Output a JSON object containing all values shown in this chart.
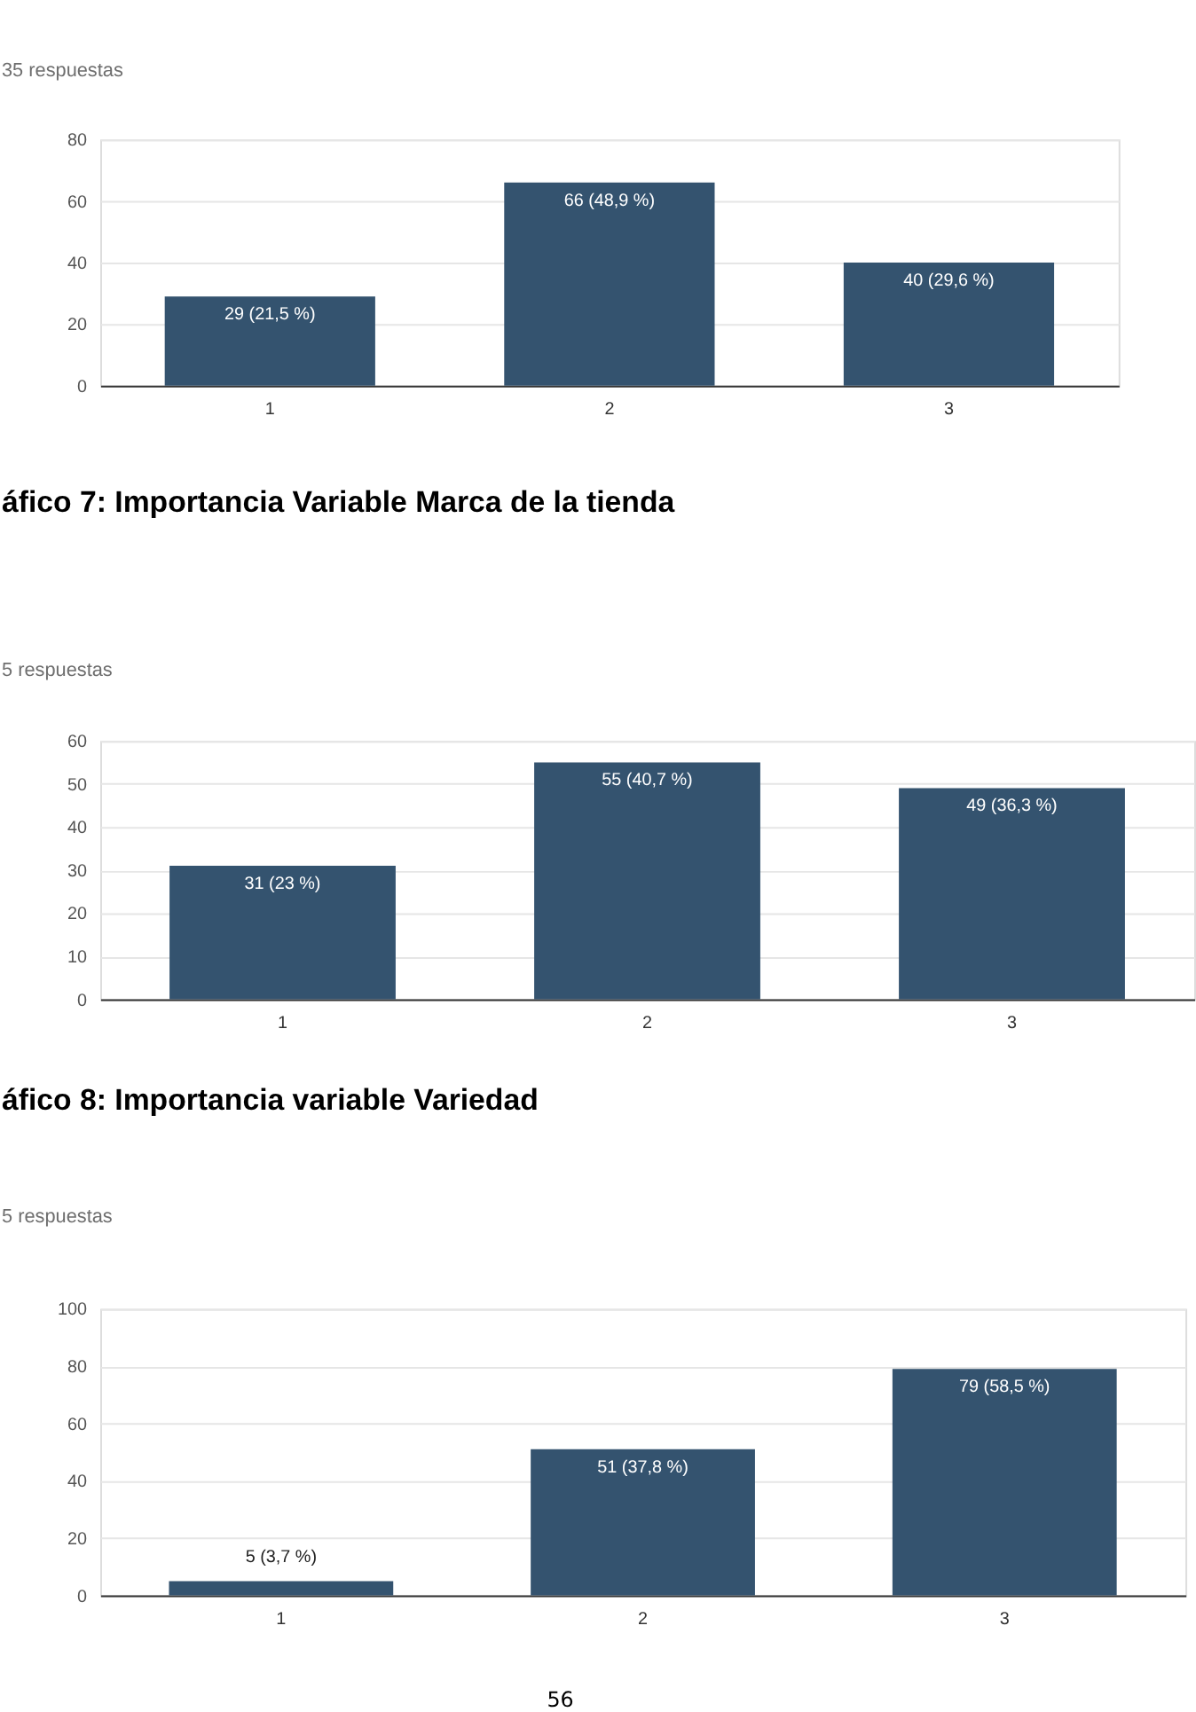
{
  "chart_data": [
    {
      "type": "bar",
      "subtitle": "35 respuestas",
      "categories": [
        "1",
        "2",
        "3"
      ],
      "values": [
        29,
        66,
        40
      ],
      "value_labels": [
        "29 (21,5 %)",
        "66 (48,9 %)",
        "40 (29,6 %)"
      ],
      "color": "#34536f",
      "ylim": [
        0,
        80
      ],
      "yticks": [
        0,
        20,
        40,
        60,
        80
      ],
      "grid": "y"
    },
    {
      "type": "bar",
      "title": "áfico 7: Importancia Variable Marca de la tienda",
      "subtitle": "5 respuestas",
      "categories": [
        "1",
        "2",
        "3"
      ],
      "values": [
        31,
        55,
        49
      ],
      "value_labels": [
        "31 (23 %)",
        "55 (40,7 %)",
        "49 (36,3 %)"
      ],
      "color": "#34536f",
      "ylim": [
        0,
        60
      ],
      "yticks": [
        0,
        10,
        20,
        30,
        40,
        50,
        60
      ],
      "grid": "y"
    },
    {
      "type": "bar",
      "title": "áfico 8: Importancia variable Variedad",
      "subtitle": "5 respuestas",
      "categories": [
        "1",
        "2",
        "3"
      ],
      "values": [
        5,
        51,
        79
      ],
      "value_labels": [
        "5 (3,7 %)",
        "51 (37,8 %)",
        "79 (58,5 %)"
      ],
      "color": "#34536f",
      "ylim": [
        0,
        100
      ],
      "yticks": [
        0,
        20,
        40,
        60,
        80,
        100
      ],
      "grid": "y",
      "annotations": [
        "56"
      ]
    }
  ]
}
